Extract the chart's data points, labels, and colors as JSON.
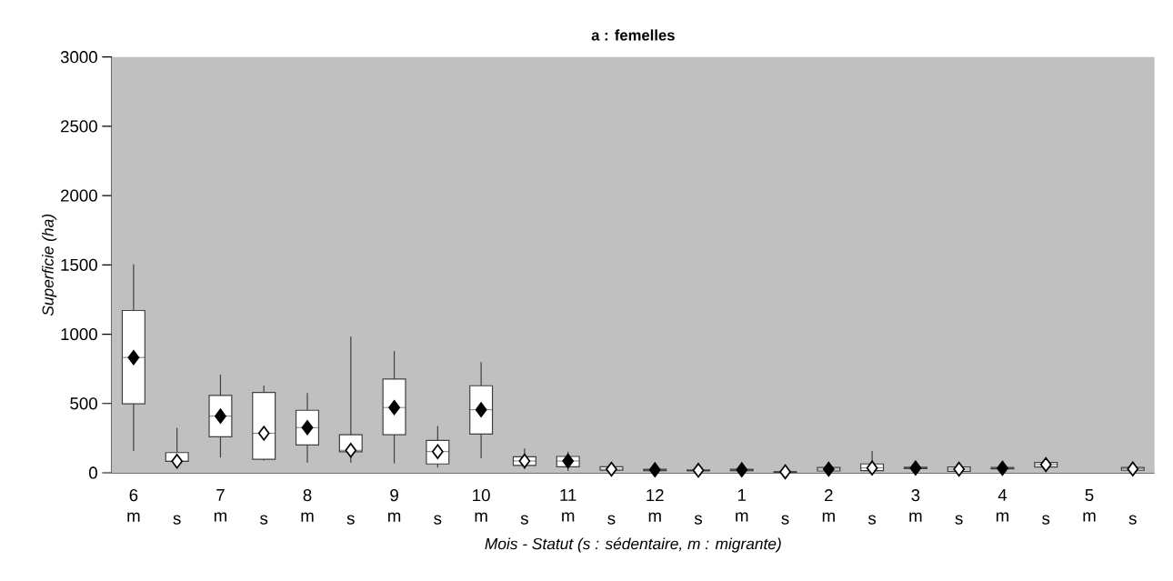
{
  "chart_data": {
    "type": "box",
    "title": "a : femelles",
    "xlabel": "Mois - Statut (s : sédentaire, m : migrante)",
    "ylabel": "Superficie (ha)",
    "categories": [
      "6 m",
      "s",
      "7 m",
      "s",
      "8 m",
      "s",
      "9 m",
      "s",
      "10 m",
      "s",
      "11 m",
      "s",
      "12 m",
      "s",
      "1 m",
      "s",
      "2 m",
      "s",
      "3 m",
      "s",
      "4 m",
      "s",
      "5 m",
      "s"
    ],
    "ylim": [
      0,
      3000
    ],
    "yticks": [
      0,
      500,
      1000,
      1500,
      2000,
      2500,
      3000
    ],
    "grid": false,
    "marker": "diamond",
    "series": [
      {
        "color": "#ffffff",
        "boxes": [
          {
            "low": 157,
            "q1": 497,
            "median": 832,
            "q3": 1171,
            "high": 1503
          },
          {
            "low": 75,
            "q1": 83,
            "median": 83,
            "q3": 146,
            "high": 324
          },
          {
            "low": 110,
            "q1": 260,
            "median": 409,
            "q3": 558,
            "high": 707
          },
          {
            "low": 88,
            "q1": 98,
            "median": 285,
            "q3": 580,
            "high": 630
          },
          {
            "low": 72,
            "q1": 201,
            "median": 326,
            "q3": 451,
            "high": 575
          },
          {
            "low": 72,
            "q1": 151,
            "median": 162,
            "q3": 274,
            "high": 983
          },
          {
            "low": 68,
            "q1": 274,
            "median": 471,
            "q3": 676,
            "high": 878
          },
          {
            "low": 37,
            "q1": 64,
            "median": 153,
            "q3": 234,
            "high": 337
          },
          {
            "low": 105,
            "q1": 280,
            "median": 455,
            "q3": 628,
            "high": 799
          },
          {
            "low": 28,
            "q1": 53,
            "median": 85,
            "q3": 116,
            "high": 175
          },
          {
            "low": 13,
            "q1": 44,
            "median": 85,
            "q3": 118,
            "high": 153
          },
          {
            "low": 15,
            "q1": 18,
            "median": 26,
            "q3": 44,
            "high": 48
          },
          {
            "low": 10,
            "q1": 15,
            "median": 22,
            "q3": 25,
            "high": 30
          },
          {
            "low": 8,
            "q1": 14,
            "median": 18,
            "q3": 20,
            "high": 25
          },
          {
            "low": 10,
            "q1": 15,
            "median": 22,
            "q3": 25,
            "high": 30
          },
          {
            "low": 2,
            "q1": 4,
            "median": 7,
            "q3": 8,
            "high": 12
          },
          {
            "low": 8,
            "q1": 13,
            "median": 26,
            "q3": 39,
            "high": 45
          },
          {
            "low": 10,
            "q1": 15,
            "median": 35,
            "q3": 64,
            "high": 158
          },
          {
            "low": 25,
            "q1": 30,
            "median": 35,
            "q3": 40,
            "high": 45
          },
          {
            "low": 8,
            "q1": 11,
            "median": 26,
            "q3": 42,
            "high": 45
          },
          {
            "low": 20,
            "q1": 28,
            "median": 33,
            "q3": 38,
            "high": 45
          },
          {
            "low": 40,
            "q1": 42,
            "median": 59,
            "q3": 74,
            "high": 78
          },
          null,
          {
            "low": 15,
            "q1": 18,
            "median": 28,
            "q3": 39,
            "high": 42
          }
        ]
      },
      {
        "type": "scatter",
        "color": "#000000",
        "values": [
          832,
          null,
          409,
          null,
          326,
          null,
          471,
          null,
          455,
          null,
          85,
          null,
          22,
          null,
          22,
          null,
          26,
          null,
          35,
          null,
          33,
          null,
          null,
          null
        ]
      },
      {
        "type": "scatter",
        "color": "#ffffff",
        "values": [
          null,
          83,
          null,
          285,
          null,
          162,
          null,
          153,
          null,
          85,
          null,
          26,
          null,
          18,
          null,
          7,
          null,
          35,
          null,
          26,
          null,
          59,
          null,
          28
        ]
      }
    ]
  }
}
